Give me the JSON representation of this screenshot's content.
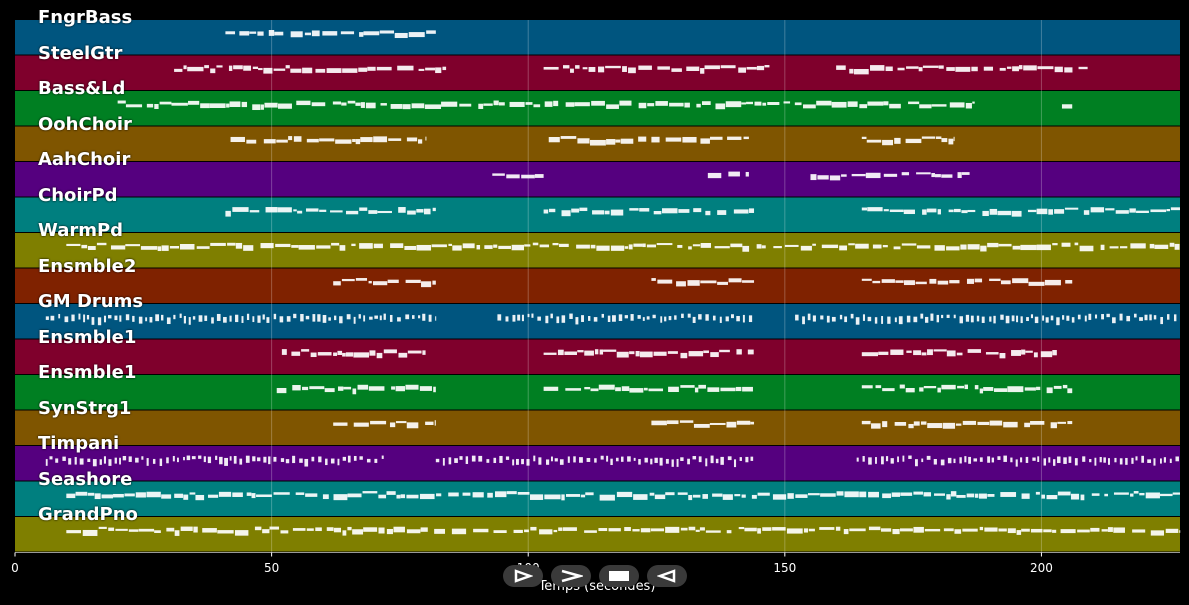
{
  "tracks": [
    {
      "name": "FngrBass",
      "color": "#00557f"
    },
    {
      "name": "SteelGtr",
      "color": "#7f002c"
    },
    {
      "name": "Bass&Ld",
      "color": "#007f22"
    },
    {
      "name": "OohChoir",
      "color": "#7f5500"
    },
    {
      "name": "AahChoir",
      "color": "#55007f"
    },
    {
      "name": "ChoirPd",
      "color": "#007f7f"
    },
    {
      "name": "WarmPd",
      "color": "#7f7f00"
    },
    {
      "name": "Ensmble2",
      "color": "#7f2200"
    },
    {
      "name": "GM Drums",
      "color": "#00557f"
    },
    {
      "name": "Ensmble1",
      "color": "#7f002c"
    },
    {
      "name": "Ensmble1",
      "color": "#007f22"
    },
    {
      "name": "SynStrg1",
      "color": "#7f5500"
    },
    {
      "name": "Timpani",
      "color": "#55007f"
    },
    {
      "name": "Seashore",
      "color": "#007f7f"
    },
    {
      "name": "GrandPno",
      "color": "#7f7f00"
    }
  ],
  "axis": {
    "label": "Temps (secondes)",
    "xlim": [
      0,
      227
    ],
    "ticks": [
      {
        "value": 0,
        "label": "0"
      },
      {
        "value": 50,
        "label": "50"
      },
      {
        "value": 100,
        "label": "100"
      },
      {
        "value": 150,
        "label": "150"
      },
      {
        "value": 200,
        "label": "200"
      }
    ]
  },
  "segments": [
    [
      [
        41,
        82
      ]
    ],
    [
      [
        31,
        84
      ],
      [
        103,
        147
      ],
      [
        160,
        209
      ]
    ],
    [
      [
        20,
        187
      ],
      [
        204,
        206
      ]
    ],
    [
      [
        42,
        80
      ],
      [
        104,
        123
      ],
      [
        124,
        143
      ],
      [
        165,
        183
      ]
    ],
    [
      [
        93,
        103
      ],
      [
        135,
        143
      ],
      [
        155,
        186
      ]
    ],
    [
      [
        41,
        82
      ],
      [
        103,
        144
      ],
      [
        165,
        227
      ]
    ],
    [
      [
        10,
        227
      ]
    ],
    [
      [
        62,
        82
      ],
      [
        124,
        144
      ],
      [
        165,
        206
      ]
    ],
    [
      [
        6,
        82
      ],
      [
        94,
        144
      ],
      [
        152,
        227
      ]
    ],
    [
      [
        52,
        80
      ],
      [
        103,
        144
      ],
      [
        165,
        203
      ]
    ],
    [
      [
        51,
        82
      ],
      [
        103,
        144
      ],
      [
        165,
        206
      ]
    ],
    [
      [
        62,
        82
      ],
      [
        124,
        144
      ],
      [
        165,
        206
      ]
    ],
    [
      [
        6,
        72
      ],
      [
        82,
        144
      ],
      [
        164,
        227
      ]
    ],
    [
      [
        10,
        227
      ]
    ],
    [
      [
        10,
        227
      ]
    ]
  ],
  "controls": [
    {
      "name": "play-icon",
      "label": "play"
    },
    {
      "name": "fast-forward-icon",
      "label": "forward"
    },
    {
      "name": "stop-icon",
      "label": "stop"
    },
    {
      "name": "rewind-icon",
      "label": "back"
    }
  ]
}
